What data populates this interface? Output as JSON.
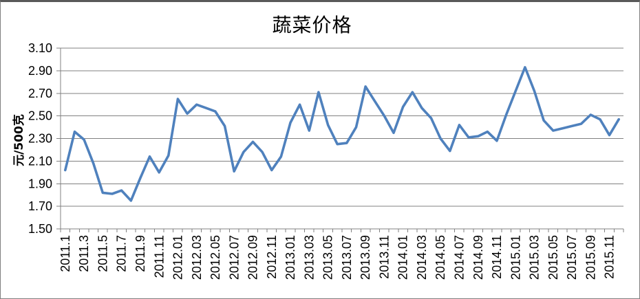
{
  "chart_data": {
    "type": "line",
    "title": "蔬菜价格",
    "ylabel": "元/500克",
    "xlabel": "",
    "ylim": [
      1.5,
      3.1
    ],
    "ytick_step": 0.2,
    "yticks": [
      "3.10",
      "2.90",
      "2.70",
      "2.50",
      "2.30",
      "2.10",
      "1.90",
      "1.70",
      "1.50"
    ],
    "grid": true,
    "legend": "none",
    "series_color": "#4F81BD",
    "categories": [
      "2011.1",
      "2011.2",
      "2011.3",
      "2011.4",
      "2011.5",
      "2011.6",
      "2011.7",
      "2011.8",
      "2011.9",
      "2011.10",
      "2011.11",
      "2011.12",
      "2012.01",
      "2012.02",
      "2012.03",
      "2012.04",
      "2012.05",
      "2012.06",
      "2012.07",
      "2012.08",
      "2012.09",
      "2012.10",
      "2012.11",
      "2012.12",
      "2013.01",
      "2013.02",
      "2013.03",
      "2013.04",
      "2013.05",
      "2013.06",
      "2013.07",
      "2013.08",
      "2013.09",
      "2013.10",
      "2013.11",
      "2013.12",
      "2014.01",
      "2014.02",
      "2014.03",
      "2014.04",
      "2014.05",
      "2014.06",
      "2014.07",
      "2014.08",
      "2014.09",
      "2014.10",
      "2014.11",
      "2014.12",
      "2015.01",
      "2015.02",
      "2015.03",
      "2015.04",
      "2015.05",
      "2015.06",
      "2015.07",
      "2015.08",
      "2015.09",
      "2015.10",
      "2015.11",
      "2015.12"
    ],
    "xtick_labels": [
      "2011.1",
      "2011.3",
      "2011.5",
      "2011.7",
      "2011.9",
      "2011.11",
      "2012.01",
      "2012.03",
      "2012.05",
      "2012.07",
      "2012.09",
      "2012.11",
      "2013.01",
      "2013.03",
      "2013.05",
      "2013.07",
      "2013.09",
      "2013.11",
      "2014.01",
      "2014.03",
      "2014.05",
      "2014.07",
      "2014.09",
      "2014.11",
      "2015.01",
      "2015.03",
      "2015.05",
      "2015.07",
      "2015.09",
      "2015.11"
    ],
    "values": [
      2.02,
      2.36,
      2.29,
      2.08,
      1.82,
      1.81,
      1.84,
      1.75,
      1.95,
      2.14,
      2.0,
      2.15,
      2.65,
      2.52,
      2.6,
      2.57,
      2.54,
      2.41,
      2.01,
      2.18,
      2.27,
      2.18,
      2.02,
      2.14,
      2.44,
      2.6,
      2.37,
      2.71,
      2.42,
      2.25,
      2.26,
      2.4,
      2.76,
      2.63,
      2.5,
      2.35,
      2.58,
      2.71,
      2.57,
      2.48,
      2.3,
      2.19,
      2.42,
      2.31,
      2.32,
      2.36,
      2.28,
      2.51,
      2.72,
      2.93,
      2.72,
      2.46,
      2.37,
      2.39,
      2.41,
      2.43,
      2.51,
      2.47,
      2.33,
      2.47
    ]
  }
}
